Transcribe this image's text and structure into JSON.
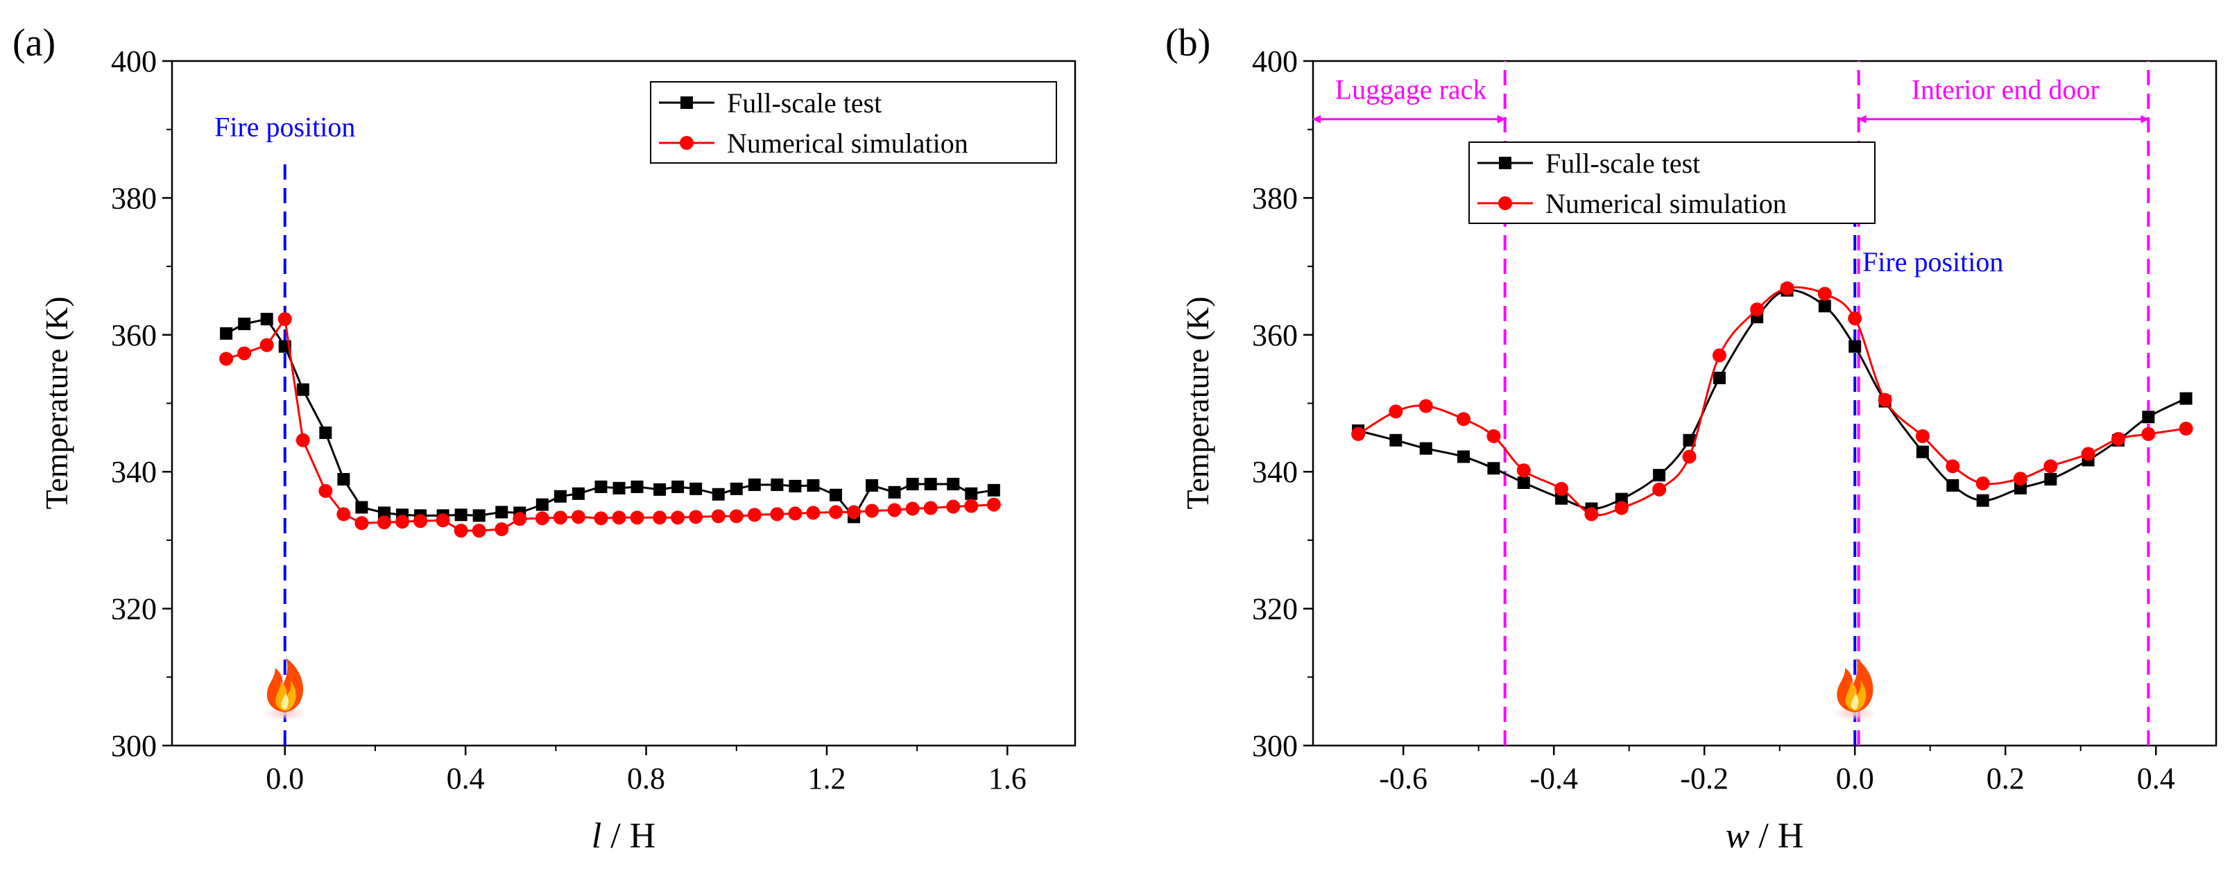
{
  "chart_data": [
    {
      "panel_label": "(a)",
      "type": "line",
      "xlabel_var": "l",
      "xlabel_rest": " / H",
      "ylabel": "Temperature (K)",
      "xlim": [
        -0.25,
        1.75
      ],
      "ylim": [
        300,
        400
      ],
      "xticks": [
        0.0,
        0.4,
        0.8,
        1.2,
        1.6
      ],
      "xtick_labels": [
        "0.0",
        "0.4",
        "0.8",
        "1.2",
        "1.6"
      ],
      "yticks": [
        300,
        320,
        340,
        360,
        380,
        400
      ],
      "ytick_labels": [
        "300",
        "320",
        "340",
        "360",
        "380",
        "400"
      ],
      "legend": {
        "position": "top-right",
        "entries": [
          "Full-scale test",
          "Numerical simulation"
        ]
      },
      "series": [
        {
          "name": "Full-scale test",
          "color": "#000000",
          "marker": "square",
          "smooth": false,
          "x": [
            -0.13,
            -0.09,
            -0.04,
            0.0,
            0.04,
            0.09,
            0.13,
            0.17,
            0.22,
            0.26,
            0.3,
            0.35,
            0.39,
            0.43,
            0.48,
            0.52,
            0.57,
            0.61,
            0.65,
            0.7,
            0.74,
            0.78,
            0.83,
            0.87,
            0.91,
            0.96,
            1.0,
            1.04,
            1.09,
            1.13,
            1.17,
            1.22,
            1.26,
            1.3,
            1.35,
            1.39,
            1.43,
            1.48,
            1.52,
            1.57
          ],
          "y": [
            360.2,
            361.6,
            362.3,
            358.3,
            352.0,
            345.7,
            338.9,
            334.8,
            334.0,
            333.7,
            333.6,
            333.6,
            333.7,
            333.6,
            334.1,
            334.0,
            335.2,
            336.4,
            336.8,
            337.8,
            337.6,
            337.8,
            337.4,
            337.8,
            337.5,
            336.7,
            337.5,
            338.1,
            338.1,
            337.9,
            338.0,
            336.6,
            333.4,
            338.0,
            337.0,
            338.2,
            338.2,
            338.2,
            336.8,
            337.3
          ]
        },
        {
          "name": "Numerical simulation",
          "color": "#ff0000",
          "marker": "circle",
          "smooth": false,
          "x": [
            -0.13,
            -0.09,
            -0.04,
            0.0,
            0.04,
            0.09,
            0.13,
            0.17,
            0.22,
            0.26,
            0.3,
            0.35,
            0.39,
            0.43,
            0.48,
            0.52,
            0.57,
            0.61,
            0.65,
            0.7,
            0.74,
            0.78,
            0.83,
            0.87,
            0.91,
            0.96,
            1.0,
            1.04,
            1.09,
            1.13,
            1.17,
            1.22,
            1.26,
            1.3,
            1.35,
            1.39,
            1.43,
            1.48,
            1.52,
            1.57
          ],
          "y": [
            356.5,
            357.3,
            358.5,
            362.3,
            344.6,
            337.2,
            333.8,
            332.5,
            332.6,
            332.7,
            332.8,
            332.9,
            331.4,
            331.4,
            331.6,
            333.1,
            333.2,
            333.3,
            333.4,
            333.2,
            333.3,
            333.3,
            333.3,
            333.3,
            333.4,
            333.5,
            333.5,
            333.7,
            333.8,
            333.9,
            334.0,
            334.1,
            334.1,
            334.3,
            334.4,
            334.6,
            334.7,
            334.9,
            335.0,
            335.2
          ]
        }
      ],
      "annotations": [
        {
          "kind": "vline",
          "x": 0.0,
          "color": "#0000ff",
          "y_from": 300,
          "y_to": 385,
          "label": "Fire position",
          "label_x": 0.0,
          "label_y": 389
        },
        {
          "kind": "fire-icon",
          "x": 0.0,
          "y": 307.5
        }
      ]
    },
    {
      "panel_label": "(b)",
      "type": "line",
      "xlabel_var": "w",
      "xlabel_rest": " / H",
      "ylabel": "Temperature (K)",
      "xlim": [
        -0.72,
        0.48
      ],
      "ylim": [
        300,
        400
      ],
      "xticks": [
        -0.6,
        -0.4,
        -0.2,
        0.0,
        0.2,
        0.4
      ],
      "xtick_labels": [
        "-0.6",
        "-0.4",
        "-0.2",
        "0.0",
        "0.2",
        "0.4"
      ],
      "yticks": [
        300,
        320,
        340,
        360,
        380,
        400
      ],
      "ytick_labels": [
        "300",
        "320",
        "340",
        "360",
        "380",
        "400"
      ],
      "legend": {
        "position": "top-left",
        "entries": [
          "Full-scale test",
          "Numerical simulation"
        ]
      },
      "series": [
        {
          "name": "Full-scale test",
          "color": "#000000",
          "marker": "square",
          "smooth": true,
          "x": [
            -0.66,
            -0.61,
            -0.57,
            -0.52,
            -0.48,
            -0.44,
            -0.39,
            -0.35,
            -0.31,
            -0.26,
            -0.22,
            -0.18,
            -0.13,
            -0.09,
            -0.04,
            0.0,
            0.04,
            0.09,
            0.13,
            0.17,
            0.22,
            0.26,
            0.31,
            0.35,
            0.39,
            0.44
          ],
          "y": [
            346.0,
            344.6,
            343.4,
            342.2,
            340.5,
            338.4,
            336.1,
            334.6,
            336.0,
            339.5,
            344.6,
            353.7,
            362.6,
            366.5,
            364.2,
            358.3,
            350.3,
            342.9,
            338.0,
            335.8,
            337.6,
            338.9,
            341.7,
            344.6,
            348.0,
            350.7
          ]
        },
        {
          "name": "Numerical simulation",
          "color": "#ff0000",
          "marker": "circle",
          "smooth": true,
          "x": [
            -0.66,
            -0.61,
            -0.57,
            -0.52,
            -0.48,
            -0.44,
            -0.39,
            -0.35,
            -0.31,
            -0.26,
            -0.22,
            -0.18,
            -0.13,
            -0.09,
            -0.04,
            0.0,
            0.04,
            0.09,
            0.13,
            0.17,
            0.22,
            0.26,
            0.31,
            0.35,
            0.39,
            0.44
          ],
          "y": [
            345.5,
            348.8,
            349.6,
            347.7,
            345.2,
            340.2,
            337.5,
            333.8,
            334.7,
            337.4,
            342.2,
            357.0,
            363.7,
            366.8,
            366.0,
            362.4,
            350.5,
            345.2,
            340.8,
            338.3,
            339.0,
            340.8,
            342.6,
            344.8,
            345.5,
            346.3
          ]
        }
      ],
      "annotations": [
        {
          "kind": "vline",
          "x": 0.0,
          "color": "#0000ff",
          "y_from": 300,
          "y_to": 380,
          "label": "Fire position",
          "label_x": 0.01,
          "label_y": 369.3
        },
        {
          "kind": "vline",
          "x": -0.465,
          "color": "#ff00ff",
          "y_from": 300,
          "y_to": 400
        },
        {
          "kind": "vline",
          "x": 0.005,
          "color": "#ff00ff",
          "y_from": 300,
          "y_to": 400
        },
        {
          "kind": "vline",
          "x": 0.39,
          "color": "#ff00ff",
          "y_from": 300,
          "y_to": 400
        },
        {
          "kind": "double-arrow",
          "x_from": -0.72,
          "x_to": -0.465,
          "y": 391.5,
          "color": "#ff00ff",
          "label": "Luggage rack",
          "label_x": -0.59,
          "label_y": 394.5
        },
        {
          "kind": "double-arrow",
          "x_from": 0.005,
          "x_to": 0.39,
          "y": 391.5,
          "color": "#ff00ff",
          "label": "Interior end door",
          "label_x": 0.2,
          "label_y": 394.5
        },
        {
          "kind": "fire-icon",
          "x": 0.0,
          "y": 307.5
        }
      ]
    }
  ]
}
